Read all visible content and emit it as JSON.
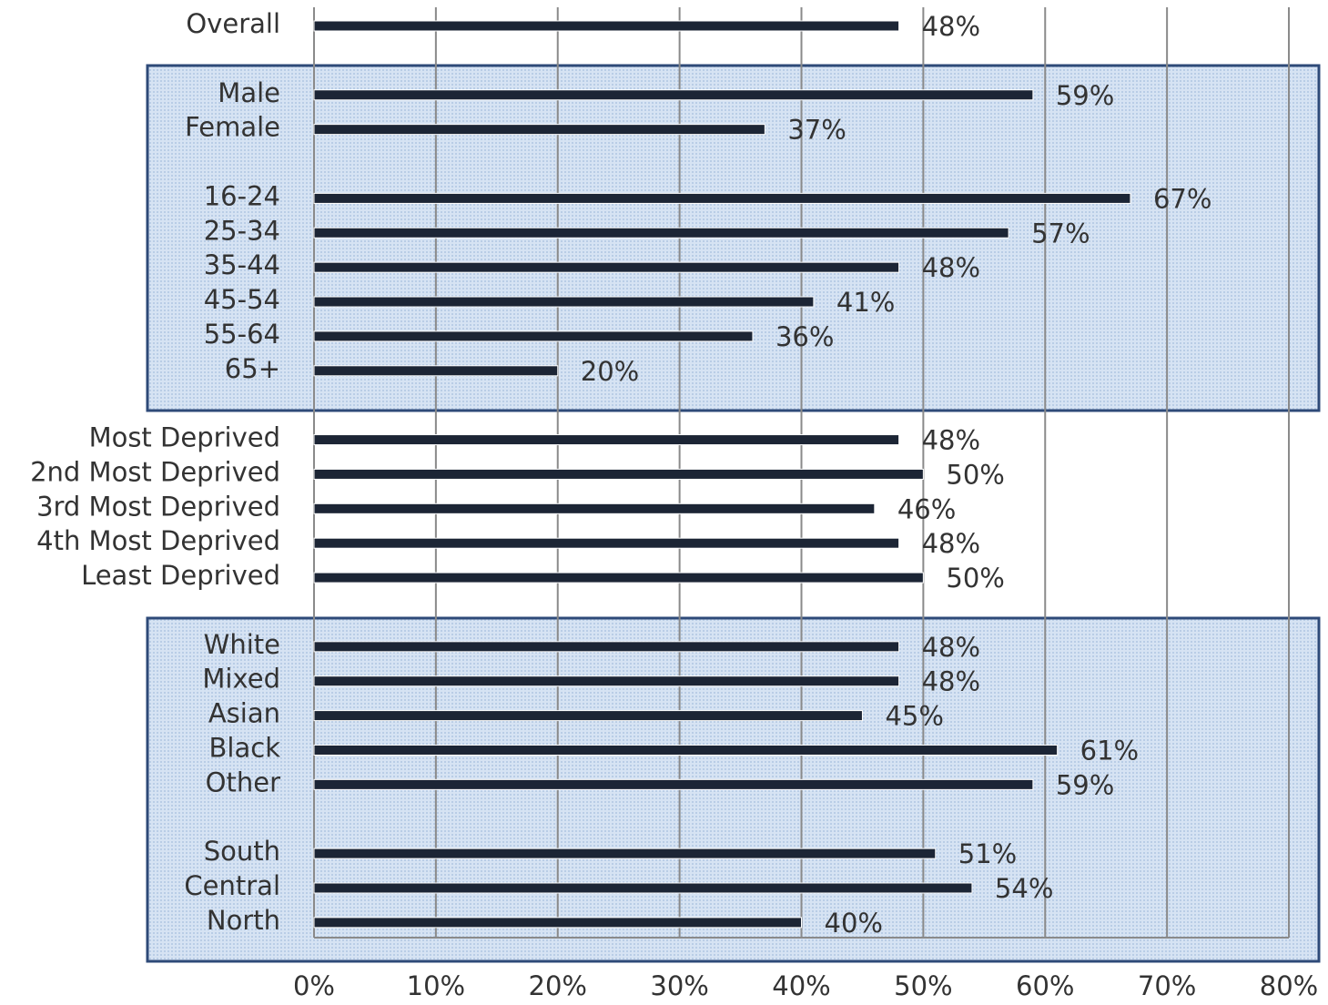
{
  "chart_data": {
    "type": "barh",
    "categories": [
      "Overall",
      null,
      "Male",
      "Female",
      null,
      "16-24",
      "25-34",
      "35-44",
      "45-54",
      "55-64",
      "65+",
      null,
      "Most Deprived",
      "2nd Most Deprived",
      "3rd Most Deprived",
      "4th Most Deprived",
      "Least Deprived",
      null,
      "White",
      "Mixed",
      "Asian",
      "Black",
      "Other",
      null,
      "South",
      "Central",
      "North"
    ],
    "values": [
      48,
      null,
      59,
      37,
      null,
      67,
      57,
      48,
      41,
      36,
      20,
      null,
      48,
      50,
      46,
      48,
      50,
      null,
      48,
      48,
      45,
      61,
      59,
      null,
      51,
      54,
      40
    ],
    "value_labels": [
      "48%",
      null,
      "59%",
      "37%",
      null,
      "67%",
      "57%",
      "48%",
      "41%",
      "36%",
      "20%",
      null,
      "48%",
      "50%",
      "46%",
      "48%",
      "50%",
      null,
      "48%",
      "48%",
      "45%",
      "61%",
      "59%",
      null,
      "51%",
      "54%",
      "40%"
    ],
    "color": "#1c2535",
    "xlim": [
      0,
      80
    ],
    "xticks": [
      {
        "value": 0,
        "label": "0%"
      },
      {
        "value": 10,
        "label": "10%"
      },
      {
        "value": 20,
        "label": "20%"
      },
      {
        "value": 30,
        "label": "30%"
      },
      {
        "value": 40,
        "label": "40%"
      },
      {
        "value": 50,
        "label": "50%"
      },
      {
        "value": 60,
        "label": "60%"
      },
      {
        "value": 70,
        "label": "70%"
      },
      {
        "value": 80,
        "label": "80%"
      }
    ],
    "grid": true
  }
}
